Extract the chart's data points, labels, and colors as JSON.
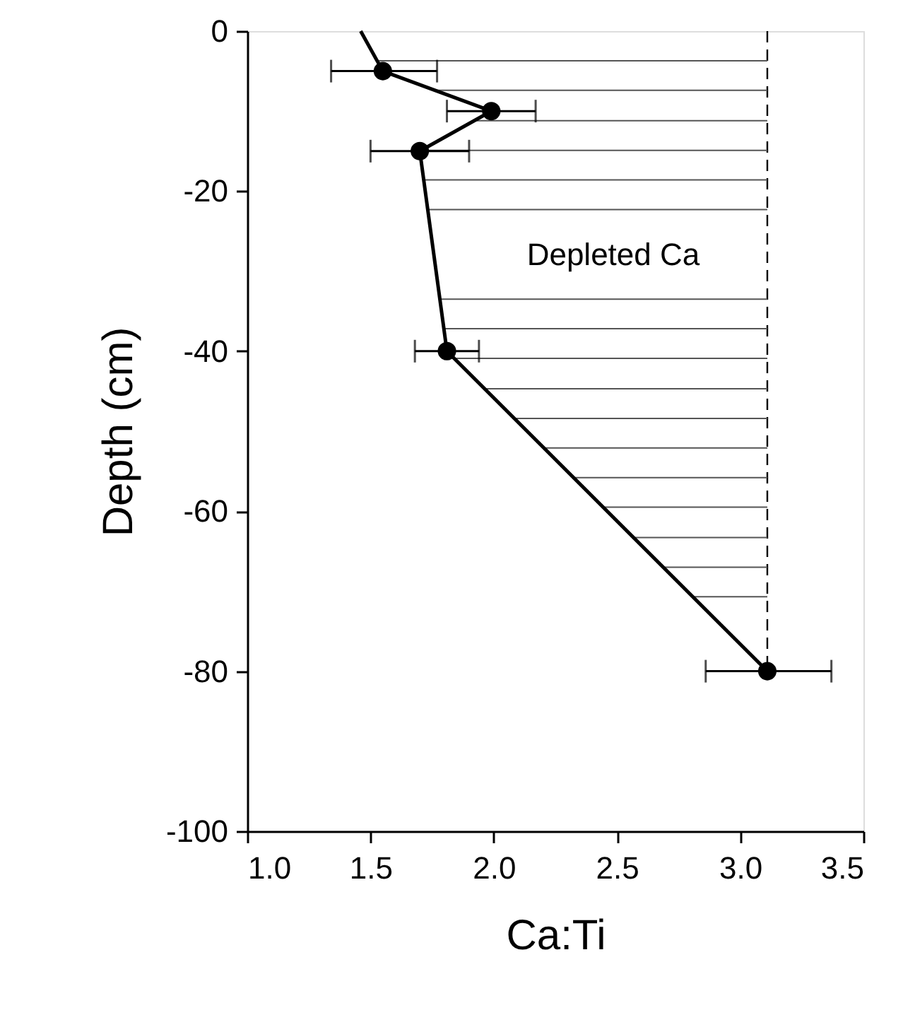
{
  "chart_data": {
    "type": "line",
    "xlabel": "Ca:Ti",
    "ylabel": "Depth (cm)",
    "xlim": [
      1.0,
      3.5
    ],
    "xticks": [
      {
        "value": 1.0,
        "label": "1.0"
      },
      {
        "value": 1.5,
        "label": "1.5"
      },
      {
        "value": 2.0,
        "label": "2.0"
      },
      {
        "value": 2.5,
        "label": "2.5"
      },
      {
        "value": 3.0,
        "label": "3.0"
      },
      {
        "value": 3.5,
        "label": "3.5"
      }
    ],
    "ylim": [
      -100,
      0
    ],
    "yticks": [
      0,
      -20,
      -40,
      -60,
      -80,
      -100
    ],
    "grid": false,
    "series": [
      {
        "color": "#000000",
        "marker": "none",
        "line_style": "solid",
        "x": [
          1.46,
          1.55,
          1.99,
          1.7,
          1.81,
          3.11
        ],
        "values": [
          0,
          -5,
          -10,
          -15,
          -40,
          -80
        ]
      },
      {
        "type": "scatter",
        "color": "#000000",
        "marker": "circle",
        "x": [
          1.55,
          1.99,
          1.7,
          1.81,
          3.11
        ],
        "values": [
          -5,
          -10,
          -15,
          -40,
          -80
        ],
        "xerrors": [
          [
            1.34,
            1.77
          ],
          [
            1.81,
            2.17
          ],
          [
            1.5,
            1.9
          ],
          [
            1.68,
            1.94
          ],
          [
            2.86,
            3.37
          ]
        ]
      }
    ],
    "ref_lines": [
      {
        "axis": "x",
        "value": 3.11,
        "line_style": "dashed",
        "color": "#000000"
      },
      {
        "axis": "y",
        "value": -3.7,
        "color": "#555555"
      },
      {
        "axis": "y",
        "value": -7.4,
        "color": "#555555"
      },
      {
        "axis": "y",
        "value": -11.2,
        "color": "#555555"
      },
      {
        "axis": "y",
        "value": -14.9,
        "color": "#555555"
      },
      {
        "axis": "y",
        "value": -18.6,
        "color": "#555555"
      },
      {
        "axis": "y",
        "value": -22.3,
        "color": "#555555"
      },
      {
        "axis": "y",
        "value": -33.5,
        "color": "#555555"
      },
      {
        "axis": "y",
        "value": -37.2,
        "color": "#555555"
      },
      {
        "axis": "y",
        "value": -40.9,
        "color": "#555555"
      },
      {
        "axis": "y",
        "value": -44.7,
        "color": "#555555"
      },
      {
        "axis": "y",
        "value": -48.4,
        "color": "#555555"
      },
      {
        "axis": "y",
        "value": -52.1,
        "color": "#555555"
      },
      {
        "axis": "y",
        "value": -55.8,
        "color": "#555555"
      },
      {
        "axis": "y",
        "value": -59.5,
        "color": "#555555"
      },
      {
        "axis": "y",
        "value": -63.3,
        "color": "#555555"
      },
      {
        "axis": "y",
        "value": -67.0,
        "color": "#555555"
      },
      {
        "axis": "y",
        "value": -70.7,
        "color": "#555555"
      }
    ],
    "annotations": [
      "Depleted Ca"
    ]
  }
}
